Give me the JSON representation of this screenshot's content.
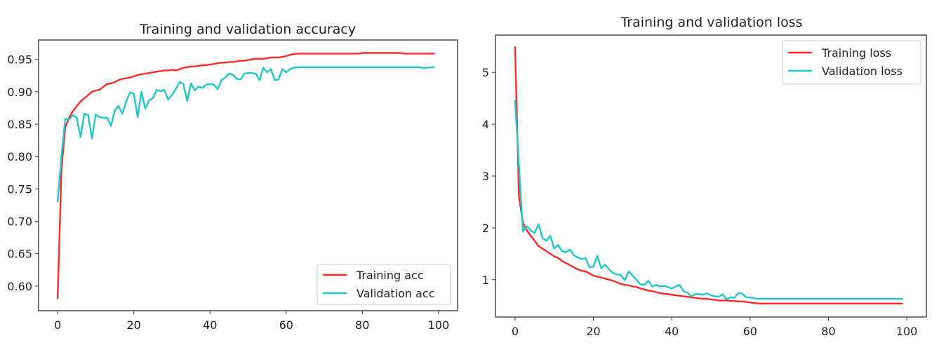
{
  "chart_data": [
    {
      "type": "line",
      "title": "Training and validation accuracy",
      "xlabel": "",
      "ylabel": "",
      "xlim": [
        -5,
        105
      ],
      "ylim": [
        0.562,
        0.98
      ],
      "xticks": [
        0,
        20,
        40,
        60,
        80,
        100
      ],
      "yticks": [
        0.6,
        0.65,
        0.7,
        0.75,
        0.8,
        0.85,
        0.9,
        0.95
      ],
      "ytick_labels": [
        "0.60",
        "0.65",
        "0.70",
        "0.75",
        "0.80",
        "0.85",
        "0.90",
        "0.95"
      ],
      "grid": false,
      "legend": "lower-right",
      "series": [
        {
          "name": "Training acc",
          "color": "#ff2a2a",
          "values": [
            0.58,
            0.78,
            0.845,
            0.86,
            0.87,
            0.878,
            0.885,
            0.89,
            0.895,
            0.9,
            0.902,
            0.903,
            0.908,
            0.912,
            0.913,
            0.915,
            0.918,
            0.92,
            0.921,
            0.922,
            0.924,
            0.926,
            0.927,
            0.928,
            0.929,
            0.93,
            0.931,
            0.932,
            0.933,
            0.933,
            0.934,
            0.933,
            0.935,
            0.937,
            0.938,
            0.939,
            0.939,
            0.94,
            0.941,
            0.941,
            0.942,
            0.943,
            0.944,
            0.945,
            0.945,
            0.946,
            0.946,
            0.947,
            0.948,
            0.948,
            0.949,
            0.95,
            0.951,
            0.951,
            0.951,
            0.952,
            0.953,
            0.953,
            0.953,
            0.954,
            0.955,
            0.957,
            0.958,
            0.959,
            0.959,
            0.959,
            0.959,
            0.959,
            0.959,
            0.959,
            0.959,
            0.959,
            0.959,
            0.959,
            0.959,
            0.959,
            0.959,
            0.959,
            0.959,
            0.959,
            0.96,
            0.96,
            0.96,
            0.96,
            0.96,
            0.96,
            0.96,
            0.96,
            0.96,
            0.96,
            0.96,
            0.959,
            0.959,
            0.959,
            0.959,
            0.959,
            0.959,
            0.959,
            0.959,
            0.959
          ]
        },
        {
          "name": "Validation acc",
          "color": "#1fc8c8",
          "values": [
            0.73,
            0.8,
            0.858,
            0.857,
            0.864,
            0.86,
            0.83,
            0.866,
            0.864,
            0.828,
            0.865,
            0.861,
            0.86,
            0.86,
            0.847,
            0.871,
            0.878,
            0.866,
            0.885,
            0.899,
            0.897,
            0.861,
            0.9,
            0.874,
            0.887,
            0.89,
            0.903,
            0.901,
            0.903,
            0.888,
            0.895,
            0.904,
            0.915,
            0.912,
            0.886,
            0.913,
            0.902,
            0.908,
            0.906,
            0.911,
            0.912,
            0.911,
            0.904,
            0.918,
            0.922,
            0.928,
            0.926,
            0.92,
            0.919,
            0.928,
            0.929,
            0.929,
            0.928,
            0.918,
            0.937,
            0.93,
            0.935,
            0.918,
            0.919,
            0.935,
            0.93,
            0.935,
            0.937,
            0.938,
            0.938,
            0.938,
            0.938,
            0.938,
            0.938,
            0.938,
            0.938,
            0.938,
            0.938,
            0.938,
            0.938,
            0.938,
            0.938,
            0.938,
            0.938,
            0.938,
            0.938,
            0.938,
            0.938,
            0.938,
            0.938,
            0.938,
            0.938,
            0.938,
            0.938,
            0.938,
            0.938,
            0.938,
            0.938,
            0.938,
            0.938,
            0.938,
            0.937,
            0.937,
            0.938,
            0.938
          ]
        }
      ]
    },
    {
      "type": "line",
      "title": "Training and validation loss",
      "xlabel": "",
      "ylabel": "",
      "xlim": [
        -5,
        105
      ],
      "ylim": [
        0.28,
        5.72
      ],
      "xticks": [
        0,
        20,
        40,
        60,
        80,
        100
      ],
      "yticks": [
        1,
        2,
        3,
        4,
        5
      ],
      "ytick_labels": [
        "1",
        "2",
        "3",
        "4",
        "5"
      ],
      "grid": false,
      "legend": "upper-right",
      "series": [
        {
          "name": "Training loss",
          "color": "#ff2a2a",
          "values": [
            5.5,
            2.6,
            2.1,
            1.95,
            1.85,
            1.75,
            1.65,
            1.6,
            1.55,
            1.5,
            1.45,
            1.42,
            1.36,
            1.32,
            1.28,
            1.24,
            1.2,
            1.17,
            1.16,
            1.12,
            1.08,
            1.06,
            1.04,
            1.02,
            1.0,
            0.98,
            0.95,
            0.92,
            0.9,
            0.89,
            0.87,
            0.86,
            0.83,
            0.81,
            0.79,
            0.78,
            0.76,
            0.74,
            0.73,
            0.72,
            0.71,
            0.7,
            0.69,
            0.68,
            0.67,
            0.66,
            0.65,
            0.64,
            0.63,
            0.63,
            0.62,
            0.61,
            0.6,
            0.6,
            0.6,
            0.59,
            0.59,
            0.58,
            0.58,
            0.57,
            0.56,
            0.55,
            0.54,
            0.54,
            0.54,
            0.54,
            0.54,
            0.54,
            0.54,
            0.54,
            0.54,
            0.54,
            0.54,
            0.54,
            0.54,
            0.54,
            0.54,
            0.54,
            0.54,
            0.54,
            0.54,
            0.54,
            0.54,
            0.54,
            0.54,
            0.54,
            0.54,
            0.54,
            0.54,
            0.54,
            0.54,
            0.54,
            0.54,
            0.54,
            0.54,
            0.54,
            0.54,
            0.54,
            0.54,
            0.54
          ]
        },
        {
          "name": "Validation loss",
          "color": "#1fc8c8",
          "values": [
            4.47,
            3.2,
            1.93,
            2.03,
            1.95,
            1.9,
            2.07,
            1.8,
            1.75,
            1.85,
            1.6,
            1.67,
            1.55,
            1.53,
            1.58,
            1.47,
            1.43,
            1.4,
            1.42,
            1.24,
            1.25,
            1.46,
            1.22,
            1.29,
            1.2,
            1.13,
            1.1,
            1.09,
            0.99,
            1.16,
            1.08,
            1.0,
            0.91,
            0.9,
            0.98,
            0.87,
            0.9,
            0.87,
            0.88,
            0.86,
            0.83,
            0.87,
            0.9,
            0.78,
            0.75,
            0.68,
            0.72,
            0.72,
            0.71,
            0.74,
            0.7,
            0.68,
            0.67,
            0.72,
            0.62,
            0.66,
            0.65,
            0.74,
            0.73,
            0.66,
            0.66,
            0.64,
            0.63,
            0.63,
            0.63,
            0.63,
            0.63,
            0.63,
            0.63,
            0.63,
            0.63,
            0.63,
            0.63,
            0.63,
            0.63,
            0.63,
            0.63,
            0.63,
            0.63,
            0.63,
            0.63,
            0.63,
            0.63,
            0.63,
            0.63,
            0.63,
            0.63,
            0.63,
            0.63,
            0.63,
            0.63,
            0.63,
            0.63,
            0.63,
            0.63,
            0.63,
            0.63,
            0.63,
            0.63,
            0.63
          ]
        }
      ]
    }
  ]
}
